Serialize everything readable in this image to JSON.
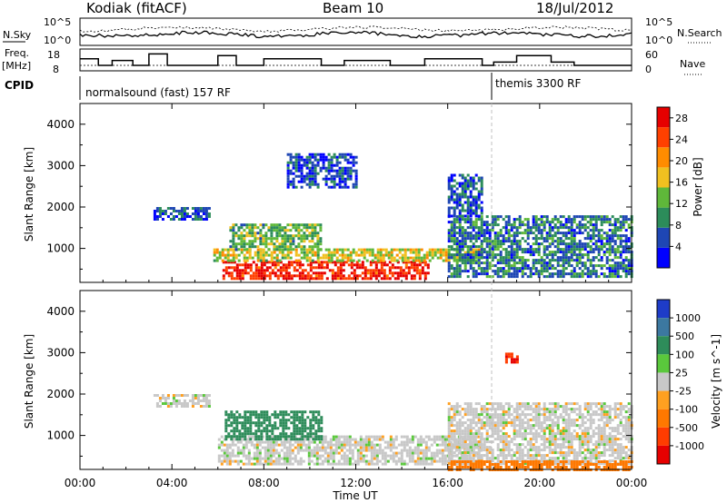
{
  "header": {
    "title": "Kodiak (fitACF)",
    "beam": "Beam 10",
    "date": "18/Jul/2012"
  },
  "summary_panel": {
    "nsky_label": "N.Sky",
    "nsearch_label": "N.Search",
    "freq_label_line1": "Freq.",
    "freq_label_line2": "[MHz]",
    "nave_label": "Nave",
    "cpid_label": "CPID",
    "noise_ticks_left": [
      "10^5",
      "10^0"
    ],
    "noise_ticks_right": [
      "10^5",
      "10^0"
    ],
    "freq_ticks_left": [
      "18",
      "8"
    ],
    "nave_ticks_right": [
      "60",
      "0"
    ],
    "cpid_segments": [
      {
        "label": "normalsound (fast) 157 RF",
        "start_hour": 0,
        "end_hour": 18
      },
      {
        "label": "themis 3300 RF",
        "start_hour": 18,
        "end_hour": 24
      }
    ]
  },
  "chart_data": [
    {
      "type": "heatmap",
      "title": "",
      "xlabel": "",
      "ylabel": "Slant Range [km]",
      "x_range_hours": [
        0,
        24
      ],
      "ylim": [
        180,
        4500
      ],
      "yticks": [
        1000,
        2000,
        3000,
        4000
      ],
      "colorbar": {
        "label": "Power [dB]",
        "range": [
          0,
          30
        ],
        "ticks": [
          4,
          8,
          12,
          16,
          20,
          24,
          28
        ],
        "colors": [
          "#0000ff",
          "#1e46b4",
          "#2c8c5a",
          "#5fb83a",
          "#f0c020",
          "#ff8c00",
          "#ff4000",
          "#e60000"
        ]
      },
      "echo_regions": [
        {
          "t0": 6.2,
          "t1": 15.2,
          "r0": 300,
          "r1": 700,
          "value": 27
        },
        {
          "t0": 5.8,
          "t1": 17.5,
          "r0": 700,
          "r1": 1000,
          "value": 16
        },
        {
          "t0": 6.5,
          "t1": 10.5,
          "r0": 1000,
          "r1": 1600,
          "value": 12
        },
        {
          "t0": 3.2,
          "t1": 5.6,
          "r0": 1700,
          "r1": 2000,
          "value": 6
        },
        {
          "t0": 16.0,
          "t1": 24.0,
          "r0": 300,
          "r1": 1800,
          "value": 8
        },
        {
          "t0": 16.0,
          "t1": 17.5,
          "r0": 1800,
          "r1": 2800,
          "value": 6
        },
        {
          "t0": 9.0,
          "t1": 12.0,
          "r0": 2500,
          "r1": 3300,
          "value": 5
        }
      ]
    },
    {
      "type": "heatmap",
      "title": "",
      "xlabel": "Time UT",
      "ylabel": "Slant Range [km]",
      "x_range_hours": [
        0,
        24
      ],
      "xticks": [
        "00:00",
        "04:00",
        "08:00",
        "12:00",
        "16:00",
        "20:00",
        "00:00"
      ],
      "ylim": [
        180,
        4500
      ],
      "yticks": [
        1000,
        2000,
        3000,
        4000
      ],
      "colorbar": {
        "label": "Velocity [m s^-1]",
        "range": [
          -1300,
          1300
        ],
        "ticks": [
          "1000",
          "500",
          "100",
          "25",
          "-25",
          "-100",
          "-500",
          "-1000"
        ],
        "colors": [
          "#1e3cc8",
          "#3c78a0",
          "#2e8c5a",
          "#5ac83c",
          "#c8c8c8",
          "#ffa020",
          "#ff7800",
          "#ff3c00",
          "#e60000"
        ]
      },
      "echo_regions": [
        {
          "t0": 6.0,
          "t1": 17.5,
          "r0": 300,
          "r1": 1000,
          "value": 0
        },
        {
          "t0": 6.3,
          "t1": 10.5,
          "r0": 900,
          "r1": 1600,
          "value": 200
        },
        {
          "t0": 3.2,
          "t1": 5.6,
          "r0": 1700,
          "r1": 2000,
          "value": 0
        },
        {
          "t0": 16.0,
          "t1": 24.0,
          "r0": 300,
          "r1": 1800,
          "value": 0
        },
        {
          "t0": 16.0,
          "t1": 24.0,
          "r0": 200,
          "r1": 400,
          "value": -200
        },
        {
          "t0": 18.5,
          "t1": 19.0,
          "r0": 2800,
          "r1": 3000,
          "value": -1000
        }
      ]
    }
  ]
}
